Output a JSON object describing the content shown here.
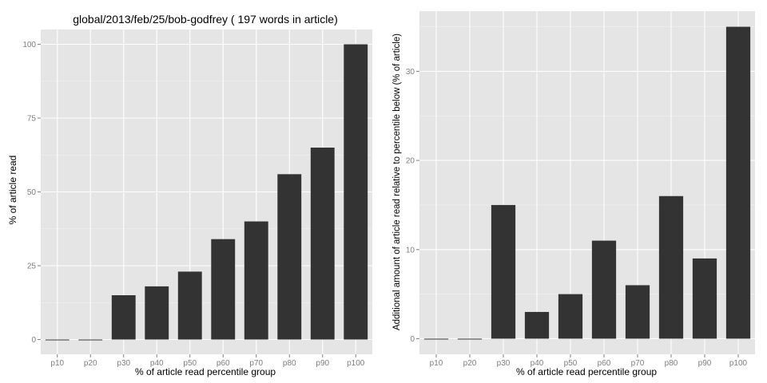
{
  "chart_data": [
    {
      "type": "bar",
      "title": "global/2013/feb/25/bob-godfrey ( 197 words in article)",
      "xlabel": "% of article read percentile group",
      "ylabel": "% of article read",
      "categories": [
        "p10",
        "p20",
        "p30",
        "p40",
        "p50",
        "p60",
        "p70",
        "p80",
        "p90",
        "p100"
      ],
      "values": [
        0,
        0,
        15,
        18,
        23,
        34,
        40,
        56,
        65,
        100
      ],
      "ylim": [
        -5,
        105
      ],
      "yticks": [
        0,
        25,
        50,
        75,
        100
      ],
      "ytick_labels": [
        "0",
        "25",
        "50",
        "75",
        "100"
      ],
      "bar_color": "#333333",
      "panel_color": "#e5e5e5",
      "grid": true
    },
    {
      "type": "bar",
      "title": "",
      "xlabel": "% of article read percentile group",
      "ylabel": "Additional amount of article read relative to percentile below (% of article)",
      "categories": [
        "p10",
        "p20",
        "p30",
        "p40",
        "p50",
        "p60",
        "p70",
        "p80",
        "p90",
        "p100"
      ],
      "values": [
        0,
        0,
        15,
        3,
        5,
        11,
        6,
        16,
        9,
        35
      ],
      "ylim": [
        -1.75,
        36.75
      ],
      "yticks": [
        0,
        10,
        20,
        30
      ],
      "ytick_labels": [
        "0",
        "10",
        "20",
        "30"
      ],
      "bar_color": "#333333",
      "panel_color": "#e5e5e5",
      "grid": true
    }
  ]
}
